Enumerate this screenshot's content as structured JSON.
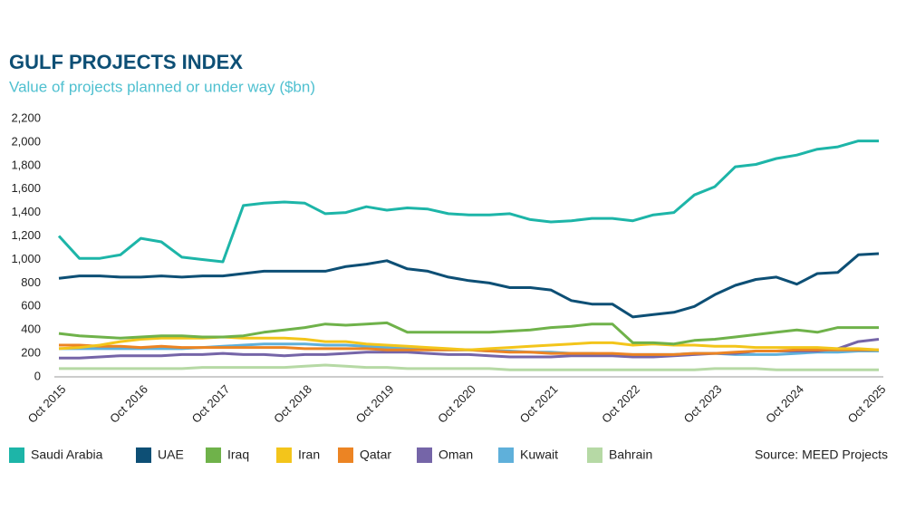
{
  "chart_data": {
    "type": "line",
    "title": "GULF PROJECTS INDEX",
    "subtitle": "Value of projects planned or under way ($bn)",
    "source": "Source: MEED Projects",
    "categories": [
      "Oct 2015",
      null,
      null,
      null,
      "Oct 2016",
      null,
      null,
      null,
      "Oct 2017",
      null,
      null,
      null,
      "Oct 2018",
      null,
      null,
      null,
      "Oct 2019",
      null,
      null,
      null,
      "Oct 2020",
      null,
      null,
      null,
      "Oct 2021",
      null,
      null,
      null,
      "Oct 2022",
      null,
      null,
      null,
      "Oct 2023",
      null,
      null,
      null,
      "Oct 2024",
      null,
      null,
      null,
      "Oct 2025"
    ],
    "ylim": [
      0,
      2200
    ],
    "yticks": [
      0,
      200,
      400,
      600,
      800,
      {
        "value": 1000,
        "label": "1,000"
      },
      {
        "value": 1200,
        "label": "1,200"
      },
      {
        "value": 1400,
        "label": "1,400"
      },
      {
        "value": 1600,
        "label": "1,600"
      },
      {
        "value": 1800,
        "label": "1,800"
      },
      {
        "value": 2000,
        "label": "2,000"
      },
      {
        "value": 2200,
        "label": "2,200"
      }
    ],
    "grid": false,
    "legend": "bottom",
    "series": [
      {
        "name": "Saudi Arabia",
        "color": "#1db5a8",
        "values": [
          1200,
          1010,
          1010,
          1040,
          1180,
          1150,
          1020,
          1000,
          980,
          1460,
          1480,
          1490,
          1480,
          1390,
          1400,
          1450,
          1420,
          1440,
          1430,
          1390,
          1380,
          1380,
          1390,
          1340,
          1320,
          1330,
          1350,
          1350,
          1330,
          1380,
          1400,
          1550,
          1620,
          1790,
          1810,
          1860,
          1890,
          1940,
          1960,
          2010,
          2010
        ]
      },
      {
        "name": "UAE",
        "color": "#0d4f75",
        "values": [
          840,
          860,
          860,
          850,
          850,
          860,
          850,
          860,
          860,
          880,
          900,
          900,
          900,
          900,
          940,
          960,
          990,
          920,
          900,
          850,
          820,
          800,
          760,
          760,
          740,
          650,
          620,
          620,
          510,
          530,
          550,
          600,
          700,
          780,
          830,
          850,
          790,
          880,
          890,
          1040,
          1050
        ]
      },
      {
        "name": "Iraq",
        "color": "#6fb24a",
        "values": [
          370,
          350,
          340,
          330,
          340,
          350,
          350,
          340,
          340,
          350,
          380,
          400,
          420,
          450,
          440,
          450,
          460,
          380,
          380,
          380,
          380,
          380,
          390,
          400,
          420,
          430,
          450,
          450,
          290,
          290,
          280,
          310,
          320,
          340,
          360,
          380,
          400,
          380,
          420,
          420,
          420
        ]
      },
      {
        "name": "Iran",
        "color": "#f3c51b",
        "values": [
          240,
          250,
          270,
          300,
          320,
          330,
          330,
          330,
          340,
          330,
          330,
          330,
          320,
          300,
          300,
          280,
          270,
          260,
          250,
          240,
          230,
          240,
          250,
          260,
          270,
          280,
          290,
          290,
          270,
          280,
          270,
          270,
          260,
          260,
          250,
          250,
          250,
          250,
          240,
          240,
          230
        ]
      },
      {
        "name": "Qatar",
        "color": "#ec8423",
        "values": [
          270,
          270,
          260,
          260,
          250,
          260,
          250,
          250,
          250,
          250,
          250,
          250,
          240,
          240,
          240,
          240,
          230,
          230,
          230,
          230,
          230,
          220,
          210,
          210,
          200,
          200,
          200,
          200,
          190,
          190,
          190,
          200,
          200,
          210,
          220,
          220,
          230,
          230,
          230,
          230,
          230
        ]
      },
      {
        "name": "Oman",
        "color": "#7565a8",
        "values": [
          160,
          160,
          170,
          180,
          180,
          180,
          190,
          190,
          200,
          190,
          190,
          180,
          190,
          190,
          200,
          210,
          210,
          210,
          200,
          190,
          190,
          180,
          170,
          170,
          170,
          180,
          180,
          180,
          170,
          170,
          180,
          190,
          200,
          200,
          220,
          220,
          220,
          220,
          240,
          300,
          320
        ]
      },
      {
        "name": "Kuwait",
        "color": "#5fb0da",
        "values": [
          240,
          240,
          240,
          240,
          240,
          240,
          240,
          250,
          260,
          270,
          280,
          280,
          280,
          270,
          270,
          260,
          250,
          240,
          230,
          230,
          230,
          220,
          220,
          210,
          210,
          200,
          200,
          190,
          190,
          190,
          190,
          200,
          200,
          190,
          190,
          190,
          200,
          210,
          210,
          220,
          220
        ]
      },
      {
        "name": "Bahrain",
        "color": "#b6d9a5",
        "values": [
          70,
          70,
          70,
          70,
          70,
          70,
          70,
          80,
          80,
          80,
          80,
          80,
          90,
          100,
          90,
          80,
          80,
          70,
          70,
          70,
          70,
          70,
          60,
          60,
          60,
          60,
          60,
          60,
          60,
          60,
          60,
          60,
          70,
          70,
          70,
          60,
          60,
          60,
          60,
          60,
          60
        ]
      }
    ]
  }
}
